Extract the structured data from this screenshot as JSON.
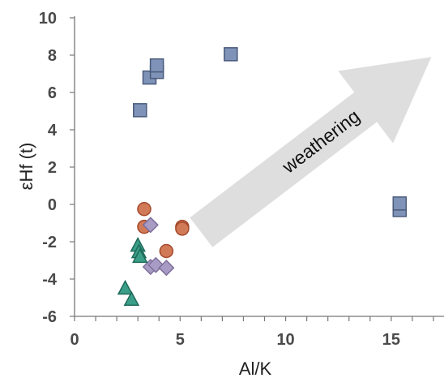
{
  "chart_data": {
    "type": "scatter",
    "title": "",
    "xlabel": "Al/K",
    "ylabel": "εHf (t)",
    "xlim": [
      0,
      17.5
    ],
    "ylim": [
      -6,
      10
    ],
    "xticks": [
      0,
      5,
      10,
      15
    ],
    "yticks": [
      -6,
      -4,
      -2,
      0,
      2,
      4,
      6,
      8,
      10
    ],
    "grid": false,
    "legend": "none",
    "series": [
      {
        "marker": "square",
        "color": "#7f93b8",
        "stroke": "#4a5a7a",
        "points": [
          [
            3.1,
            5.05
          ],
          [
            3.55,
            6.8
          ],
          [
            3.9,
            7.1
          ],
          [
            3.9,
            7.45
          ],
          [
            7.4,
            8.05
          ],
          [
            15.4,
            -0.3
          ],
          [
            15.4,
            0.05
          ]
        ]
      },
      {
        "marker": "circle",
        "color": "#d07a58",
        "stroke": "#a4492c",
        "points": [
          [
            3.3,
            -0.25
          ],
          [
            3.3,
            -1.2
          ],
          [
            5.1,
            -1.2
          ],
          [
            5.1,
            -1.3
          ],
          [
            4.35,
            -2.5
          ]
        ]
      },
      {
        "marker": "diamond",
        "color": "#a99cc4",
        "stroke": "#7e6f9c",
        "points": [
          [
            3.6,
            -1.1
          ],
          [
            3.6,
            -3.35
          ],
          [
            3.85,
            -3.25
          ],
          [
            4.35,
            -3.4
          ]
        ]
      },
      {
        "marker": "triangle",
        "color": "#3a9e88",
        "stroke": "#1f6a5a",
        "points": [
          [
            3.0,
            -2.2
          ],
          [
            3.05,
            -2.55
          ],
          [
            3.1,
            -2.8
          ],
          [
            2.4,
            -4.5
          ],
          [
            2.7,
            -5.1
          ]
        ]
      }
    ],
    "annotations": [
      {
        "type": "arrow",
        "text": "weathering",
        "from": [
          6.0,
          -1.5
        ],
        "to": [
          16.9,
          7.9
        ],
        "color": "#dedede"
      }
    ]
  }
}
